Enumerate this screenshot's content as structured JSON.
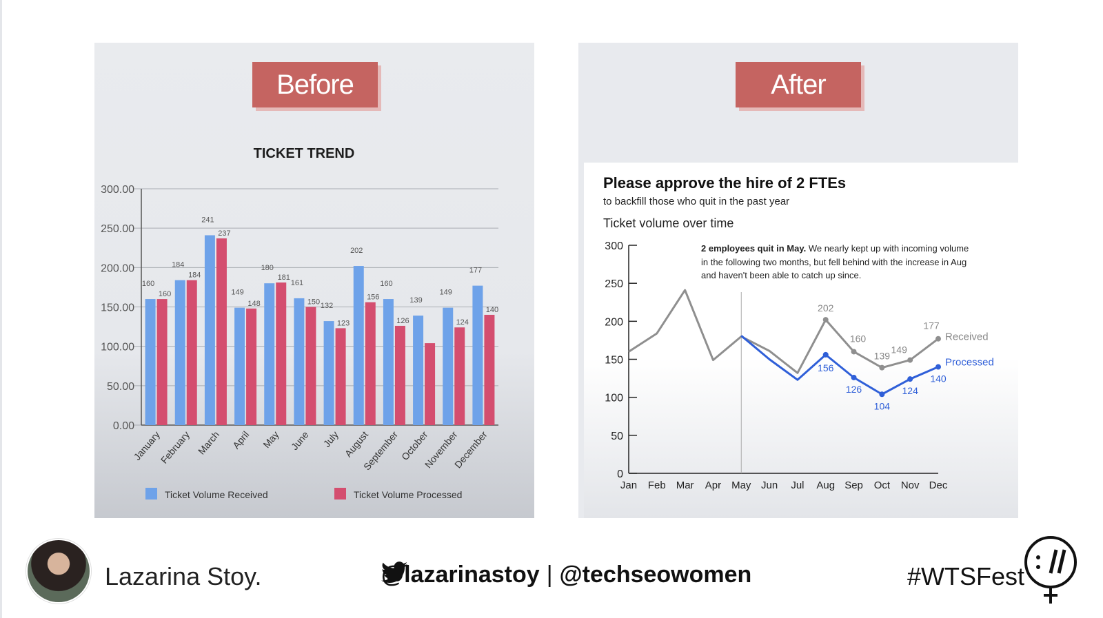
{
  "before": {
    "tag": "Before",
    "title": "TICKET TREND",
    "legend": [
      "Ticket Volume Received",
      "Ticket Volume Processed"
    ]
  },
  "after": {
    "tag": "After",
    "headline": "Please approve the hire of 2 FTEs",
    "subheadline": "to backfill those who quit in the past year",
    "chart_title": "Ticket volume over time",
    "annotation_bold": "2 employees quit in May.",
    "annotation_line1": " We nearly kept up with incoming volume",
    "annotation_line2": "in the following two months, but fell behind with the increase in Aug",
    "annotation_line3": "and haven't been able to catch up since."
  },
  "footer": {
    "name": "Lazarina Stoy.",
    "handle1": "@lazarinastoy",
    "separator": "|",
    "handle2": "@techseowomen",
    "hashtag": "#WTSFest"
  },
  "colors": {
    "received_bar": "#6ea2e9",
    "processed_bar": "#d44e6f",
    "received_line": "#8f8f8f",
    "processed_line": "#2f5fd8",
    "tag_bg": "#c56461"
  },
  "chart_data": [
    {
      "type": "bar",
      "title": "TICKET TREND",
      "categories": [
        "January",
        "February",
        "March",
        "April",
        "May",
        "June",
        "July",
        "August",
        "September",
        "October",
        "November",
        "December"
      ],
      "series": [
        {
          "name": "Ticket Volume Received",
          "values": [
            160,
            184,
            241,
            149,
            180,
            161,
            132,
            202,
            160,
            139,
            149,
            177
          ]
        },
        {
          "name": "Ticket Volume Processed",
          "values": [
            160,
            184,
            237,
            148,
            181,
            150,
            123,
            156,
            126,
            104,
            124,
            140
          ]
        }
      ],
      "data_labels": [
        [
          "160",
          "184",
          "241",
          "149",
          "180",
          "161",
          "132",
          "202",
          "160",
          "139",
          "149",
          "177"
        ],
        [
          "160",
          "184",
          "237",
          "148",
          "181",
          "150",
          "123",
          "156",
          "126",
          "",
          "124",
          "140"
        ]
      ],
      "yticks": [
        "0.00",
        "50.00",
        "100.00",
        "150.00",
        "200.00",
        "250.00",
        "300.00"
      ],
      "ylim": [
        0,
        300
      ],
      "legend_position": "bottom",
      "grid": true
    },
    {
      "type": "line",
      "categories": [
        "Jan",
        "Feb",
        "Mar",
        "Apr",
        "May",
        "Jun",
        "Jul",
        "Aug",
        "Sep",
        "Oct",
        "Nov",
        "Dec"
      ],
      "series": [
        {
          "name": "Received",
          "values": [
            160,
            184,
            241,
            149,
            180,
            161,
            132,
            202,
            160,
            139,
            149,
            177
          ],
          "labels": [
            "",
            "",
            "",
            "",
            "",
            "",
            "",
            "202",
            "160",
            "139",
            "149",
            "177"
          ]
        },
        {
          "name": "Processed",
          "values": [
            160,
            184,
            237,
            148,
            181,
            150,
            123,
            156,
            126,
            104,
            124,
            140
          ],
          "labels": [
            "",
            "",
            "",
            "",
            "",
            "",
            "",
            "156",
            "126",
            "104",
            "124",
            "140"
          ]
        }
      ],
      "yticks": [
        "0",
        "50",
        "100",
        "150",
        "200",
        "250",
        "300"
      ],
      "ylim": [
        0,
        300
      ],
      "reference_line": "May",
      "legend_position": "right (direct labels)",
      "grid": false
    }
  ]
}
